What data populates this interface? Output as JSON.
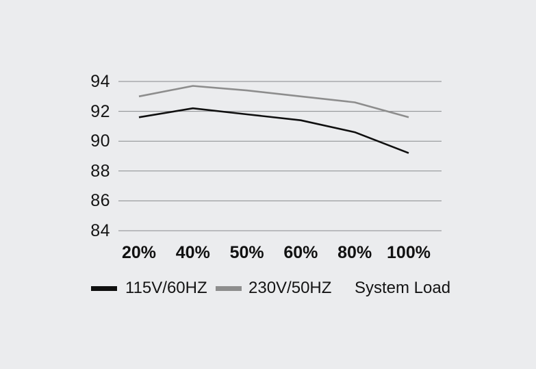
{
  "chart_data": {
    "type": "line",
    "title": "",
    "categories": [
      "20%",
      "40%",
      "50%",
      "60%",
      "80%",
      "100%"
    ],
    "series": [
      {
        "name": "115V/60HZ",
        "color": "#0f0f0f",
        "values": [
          91.6,
          92.2,
          91.8,
          91.4,
          90.6,
          89.2
        ]
      },
      {
        "name": "230V/50HZ",
        "color": "#8d8d8d",
        "values": [
          93.0,
          93.7,
          93.4,
          93.0,
          92.6,
          91.6
        ]
      }
    ],
    "xlabel": "System Load",
    "ylabel": "",
    "y_ticks": [
      94,
      92,
      90,
      88,
      86,
      84
    ],
    "ylim": [
      84,
      94
    ],
    "grid": "horizontal-only",
    "legend_position": "bottom",
    "background_color": "#ebecee",
    "gridline_color": "#87898c"
  },
  "legend": {
    "item1": "115V/60HZ",
    "item2": "230V/50HZ",
    "axis_title": "System Load"
  }
}
